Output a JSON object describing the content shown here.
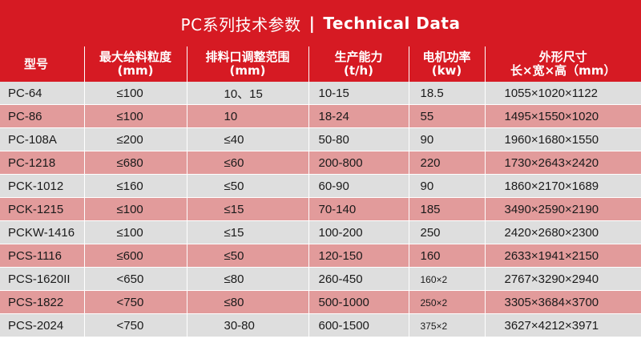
{
  "title": {
    "cn": "PC系列技术参数",
    "separator": "|",
    "en": "Technical Data"
  },
  "colors": {
    "header_red": "#d61a23",
    "row_gray": "#dedede",
    "row_pink": "#e29b9b"
  },
  "headers": [
    {
      "line1": "型号",
      "line2": ""
    },
    {
      "line1": "最大给料粒度",
      "line2": "(mm)"
    },
    {
      "line1": "排料口调整范围",
      "line2": "(mm)"
    },
    {
      "line1": "生产能力",
      "line2": "(t/h)"
    },
    {
      "line1": "电机功率",
      "line2": "(kw)"
    },
    {
      "line1": "外形尺寸",
      "line2": "长×宽×高（mm）"
    }
  ],
  "rows": [
    [
      "PC-64",
      "≤100",
      "10、15",
      "10-15",
      "18.5",
      "1055×1020×1122"
    ],
    [
      "PC-86",
      "≤100",
      "10",
      "18-24",
      "55",
      "1495×1550×1020"
    ],
    [
      "PC-108A",
      "≤200",
      "≤40",
      "50-80",
      "90",
      "1960×1680×1550"
    ],
    [
      "PC-1218",
      "≤680",
      "≤60",
      "200-800",
      "220",
      "1730×2643×2420"
    ],
    [
      "PCK-1012",
      "≤160",
      "≤50",
      "60-90",
      "90",
      "1860×2170×1689"
    ],
    [
      "PCK-1215",
      "≤100",
      "≤15",
      "70-140",
      "185",
      "3490×2590×2190"
    ],
    [
      "PCKW-1416",
      "≤100",
      "≤15",
      "100-200",
      "250",
      "2420×2680×2300"
    ],
    [
      "PCS-1116",
      "≤600",
      "≤50",
      "120-150",
      "160",
      "2633×1941×2150"
    ],
    [
      "PCS-1620II",
      "<650",
      "≤80",
      "260-450",
      "160×2",
      "2767×3290×2940"
    ],
    [
      "PCS-1822",
      "<750",
      "≤80",
      "500-1000",
      "250×2",
      "3305×3684×3700"
    ],
    [
      "PCS-2024",
      "<750",
      "30-80",
      "600-1500",
      "375×2",
      "3627×4212×3971"
    ]
  ]
}
